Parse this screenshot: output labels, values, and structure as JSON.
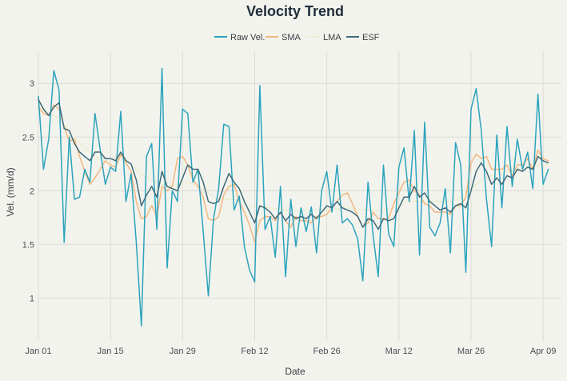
{
  "chart_data": {
    "type": "line",
    "title": "Velocity Trend",
    "xlabel": "Date",
    "ylabel": "Vel. (mm/d)",
    "x_range_days": [
      0,
      100
    ],
    "ylim": [
      0.6,
      3.3
    ],
    "x_ticks": [
      {
        "label": "Jan 01",
        "day": 0
      },
      {
        "label": "Jan 15",
        "day": 14
      },
      {
        "label": "Jan 29",
        "day": 28
      },
      {
        "label": "Feb 12",
        "day": 42
      },
      {
        "label": "Feb 26",
        "day": 56
      },
      {
        "label": "Mar 12",
        "day": 70
      },
      {
        "label": "Mar 26",
        "day": 84
      },
      {
        "label": "Apr 09",
        "day": 98
      }
    ],
    "y_ticks": [
      {
        "label": "1",
        "value": 1
      },
      {
        "label": "1.5",
        "value": 1.5
      },
      {
        "label": "2",
        "value": 2
      },
      {
        "label": "2.5",
        "value": 2.5
      },
      {
        "label": "3",
        "value": 3
      }
    ],
    "legend_position": "top-center",
    "series": [
      {
        "name": "Raw Vel.",
        "color": "#2ba3bd",
        "width": 1.5,
        "values": [
          2.88,
          2.2,
          2.48,
          3.12,
          2.94,
          1.52,
          2.5,
          1.92,
          1.94,
          2.2,
          2.08,
          2.72,
          2.38,
          2.06,
          2.22,
          2.18,
          2.74,
          1.9,
          2.16,
          1.52,
          0.74,
          2.32,
          2.44,
          1.64,
          3.14,
          1.28,
          2.0,
          1.9,
          2.76,
          2.72,
          2.08,
          2.2,
          1.62,
          1.02,
          1.74,
          2.02,
          2.62,
          2.6,
          1.82,
          1.95,
          1.48,
          1.26,
          1.15,
          2.98,
          1.64,
          1.76,
          1.38,
          2.04,
          1.2,
          1.92,
          1.48,
          1.84,
          1.62,
          1.85,
          1.42,
          2.0,
          2.18,
          1.8,
          2.24,
          1.7,
          1.74,
          1.68,
          1.55,
          1.16,
          2.08,
          1.58,
          1.2,
          2.24,
          1.6,
          1.48,
          2.22,
          2.4,
          1.9,
          2.56,
          1.4,
          2.64,
          1.66,
          1.58,
          1.7,
          2.02,
          1.42,
          2.45,
          2.24,
          1.24,
          2.76,
          2.95,
          2.56,
          1.92,
          1.48,
          2.52,
          1.84,
          2.6,
          2.04,
          2.48,
          2.2,
          2.36,
          2.02,
          2.9,
          2.06,
          2.2
        ]
      },
      {
        "name": "SMA",
        "color": "#f3b77e",
        "width": 1.5,
        "values": [
          2.78,
          2.72,
          2.7,
          2.8,
          2.76,
          2.6,
          2.46,
          2.48,
          2.32,
          2.18,
          2.06,
          2.12,
          2.2,
          2.28,
          2.24,
          2.22,
          2.34,
          2.26,
          2.18,
          1.9,
          1.74,
          1.76,
          1.86,
          1.76,
          2.04,
          2.0,
          2.04,
          2.3,
          2.32,
          2.24,
          2.1,
          2.04,
          1.94,
          1.74,
          1.72,
          1.76,
          1.96,
          2.04,
          2.06,
          1.9,
          1.8,
          1.68,
          1.52,
          1.72,
          1.76,
          1.76,
          1.72,
          1.8,
          1.72,
          1.66,
          1.76,
          1.72,
          1.72,
          1.7,
          1.76,
          1.76,
          1.78,
          1.84,
          1.9,
          1.96,
          1.98,
          1.88,
          1.76,
          1.66,
          1.7,
          1.8,
          1.74,
          1.74,
          1.74,
          1.88,
          1.98,
          2.08,
          2.1,
          2.0,
          1.96,
          1.88,
          1.86,
          1.8,
          1.8,
          1.8,
          1.78,
          1.86,
          1.86,
          1.94,
          2.26,
          2.34,
          2.3,
          2.32,
          2.2,
          2.2,
          2.2,
          2.24,
          2.14,
          2.24,
          2.24,
          2.3,
          2.2,
          2.38,
          2.3,
          2.28
        ]
      },
      {
        "name": "LMA",
        "color": "#eceed2",
        "width": 1.5,
        "values": [
          2.78,
          2.75,
          2.72,
          2.7,
          2.68,
          2.62,
          2.56,
          2.5,
          2.45,
          2.4,
          2.36,
          2.33,
          2.3,
          2.3,
          2.3,
          2.3,
          2.3,
          2.28,
          2.25,
          2.2,
          2.15,
          2.12,
          2.1,
          2.08,
          2.06,
          2.05,
          2.05,
          2.06,
          2.08,
          2.08,
          2.06,
          2.04,
          2.02,
          1.98,
          1.95,
          1.92,
          1.92,
          1.92,
          1.92,
          1.9,
          1.88,
          1.86,
          1.85,
          1.85,
          1.85,
          1.84,
          1.83,
          1.83,
          1.82,
          1.82,
          1.82,
          1.82,
          1.82,
          1.82,
          1.82,
          1.82,
          1.82,
          1.82,
          1.83,
          1.84,
          1.84,
          1.84,
          1.83,
          1.82,
          1.82,
          1.82,
          1.82,
          1.82,
          1.83,
          1.84,
          1.86,
          1.88,
          1.9,
          1.9,
          1.9,
          1.9,
          1.9,
          1.9,
          1.9,
          1.9,
          1.9,
          1.92,
          1.94,
          1.98,
          2.02,
          2.06,
          2.1,
          2.12,
          2.14,
          2.15,
          2.16,
          2.18,
          2.18,
          2.2,
          2.2,
          2.22,
          2.22,
          2.24,
          2.24,
          2.24
        ]
      },
      {
        "name": "ESF",
        "color": "#3d6b7a",
        "width": 1.5,
        "values": [
          2.85,
          2.76,
          2.7,
          2.78,
          2.82,
          2.58,
          2.56,
          2.44,
          2.36,
          2.32,
          2.28,
          2.36,
          2.36,
          2.3,
          2.3,
          2.28,
          2.36,
          2.28,
          2.25,
          2.1,
          1.86,
          1.96,
          2.04,
          1.94,
          2.18,
          2.04,
          2.02,
          2.0,
          2.12,
          2.24,
          2.2,
          2.2,
          2.08,
          1.9,
          1.88,
          1.9,
          2.04,
          2.16,
          2.08,
          2.02,
          1.9,
          1.8,
          1.7,
          1.86,
          1.84,
          1.8,
          1.74,
          1.8,
          1.72,
          1.78,
          1.74,
          1.76,
          1.74,
          1.78,
          1.74,
          1.8,
          1.86,
          1.84,
          1.9,
          1.84,
          1.82,
          1.8,
          1.76,
          1.66,
          1.74,
          1.72,
          1.64,
          1.74,
          1.72,
          1.74,
          1.84,
          1.94,
          1.94,
          2.04,
          1.94,
          1.98,
          1.9,
          1.86,
          1.82,
          1.84,
          1.8,
          1.86,
          1.88,
          1.84,
          2.0,
          2.18,
          2.26,
          2.18,
          2.06,
          2.12,
          2.06,
          2.14,
          2.12,
          2.2,
          2.18,
          2.22,
          2.2,
          2.32,
          2.28,
          2.26
        ]
      }
    ]
  }
}
